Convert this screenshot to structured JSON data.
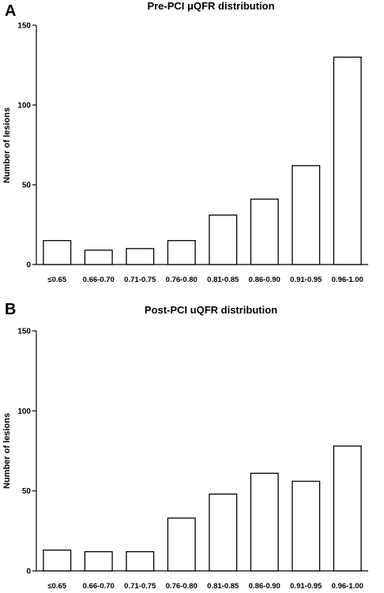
{
  "chart_data": [
    {
      "type": "bar",
      "panel": "A",
      "title": "Pre-PCI μQFR distribution",
      "xlabel": "",
      "ylabel": "Number of lesions",
      "ylim": [
        0,
        150
      ],
      "yticks": [
        "0",
        "50",
        "100",
        "150"
      ],
      "categories": [
        "≤0.65",
        "0.66-0.70",
        "0.71-0.75",
        "0.76-0.80",
        "0.81-0.85",
        "0.86-0.90",
        "0.91-0.95",
        "0.96-1.00"
      ],
      "values": [
        15,
        9,
        10,
        15,
        31,
        41,
        62,
        130
      ],
      "grid": false,
      "bar_color": "#ffffff",
      "edge_color": "#000000"
    },
    {
      "type": "bar",
      "panel": "B",
      "title": "Post-PCI uQFR distribution",
      "xlabel": "",
      "ylabel": "Number of lesions",
      "ylim": [
        0,
        150
      ],
      "yticks": [
        "0",
        "50",
        "100",
        "150"
      ],
      "categories": [
        "≤0.65",
        "0.66-0.70",
        "0.71-0.75",
        "0.76-0.80",
        "0.81-0.85",
        "0.86-0.90",
        "0.91-0.95",
        "0.96-1.00"
      ],
      "values": [
        13,
        12,
        12,
        33,
        48,
        61,
        56,
        78
      ],
      "grid": false,
      "bar_color": "#ffffff",
      "edge_color": "#000000"
    }
  ]
}
